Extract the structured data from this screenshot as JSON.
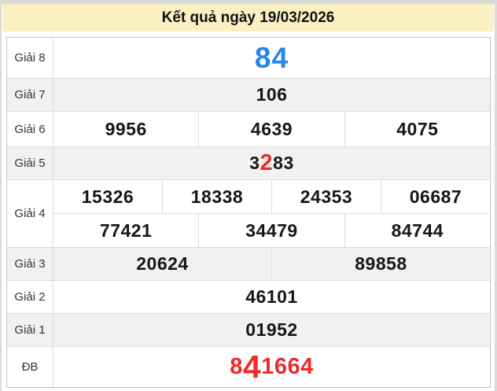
{
  "header": {
    "title": "Kết quả ngày 19/03/2026"
  },
  "colors": {
    "header_bg": "#fbf0c2",
    "accent_blue": "#2787e6",
    "accent_red": "#ee2b2b",
    "row_alt_bg": "#f1f1f1",
    "border": "#dcdcdc"
  },
  "rows": {
    "g8": {
      "label": "Giải 8",
      "value": "84"
    },
    "g7": {
      "label": "Giải 7",
      "value": "106"
    },
    "g6": {
      "label": "Giải 6",
      "values": [
        "9956",
        "4639",
        "4075"
      ]
    },
    "g5": {
      "label": "Giải 5",
      "parts": {
        "pre": "3",
        "red": "2",
        "post": "83"
      }
    },
    "g4": {
      "label": "Giải 4",
      "row1": [
        "15326",
        "18338",
        "24353",
        "06687"
      ],
      "row2": [
        "77421",
        "34479",
        "84744"
      ]
    },
    "g3": {
      "label": "Giải 3",
      "values": [
        "20624",
        "89858"
      ]
    },
    "g2": {
      "label": "Giải 2",
      "value": "46101"
    },
    "g1": {
      "label": "Giải 1",
      "value": "01952"
    },
    "db": {
      "label": "ĐB",
      "parts": {
        "pre": "8",
        "big": "4",
        "post": "1664"
      }
    }
  }
}
